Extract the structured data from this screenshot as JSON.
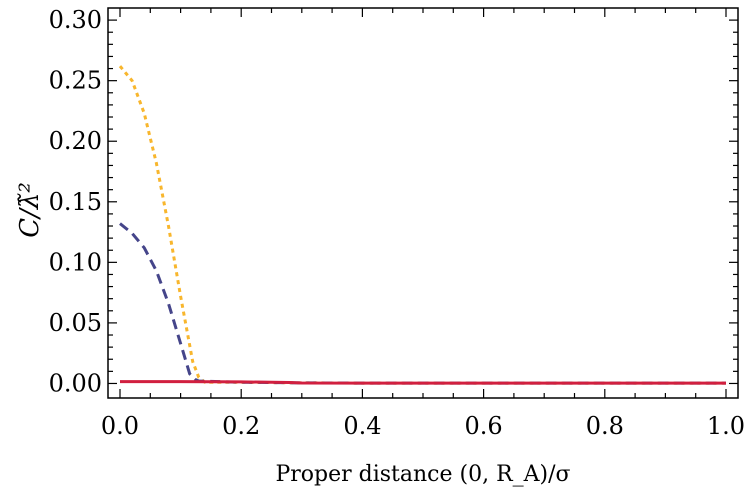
{
  "chart_data": {
    "type": "line",
    "title": "",
    "xlabel": "Proper distance  (0, R_A)/σ",
    "ylabel": "C/λ̃²",
    "xlim": [
      0.0,
      1.0
    ],
    "ylim": [
      -0.012,
      0.31
    ],
    "xticks": [
      0.0,
      0.2,
      0.4,
      0.6,
      0.8,
      1.0
    ],
    "xtick_labels": [
      "0.0",
      "0.2",
      "0.4",
      "0.6",
      "0.8",
      "1.0"
    ],
    "yticks": [
      0.0,
      0.05,
      0.1,
      0.15,
      0.2,
      0.25,
      0.3
    ],
    "ytick_labels": [
      "0.00",
      "0.05",
      "0.10",
      "0.15",
      "0.20",
      "0.25",
      "0.30"
    ],
    "grid": false,
    "series": [
      {
        "color": "#f8b62d",
        "dash": "dotted",
        "x": [
          0.0,
          0.02,
          0.04,
          0.06,
          0.08,
          0.1,
          0.12,
          0.13,
          0.14,
          0.2,
          0.3,
          0.4,
          0.5,
          0.6,
          0.7,
          0.8,
          0.9,
          1.0
        ],
        "y": [
          0.262,
          0.25,
          0.223,
          0.182,
          0.13,
          0.072,
          0.018,
          0.005,
          0.001,
          0.001,
          0.0005,
          0.0003,
          0.0003,
          0.0003,
          0.0003,
          0.0003,
          0.0003,
          0.0003
        ]
      },
      {
        "color": "#45458a",
        "dash": "dashed",
        "x": [
          0.0,
          0.02,
          0.04,
          0.06,
          0.08,
          0.1,
          0.115,
          0.125,
          0.13,
          0.2,
          0.3,
          0.4,
          0.5,
          0.6,
          0.7,
          0.8,
          0.9,
          1.0
        ],
        "y": [
          0.132,
          0.124,
          0.112,
          0.093,
          0.066,
          0.033,
          0.008,
          0.003,
          0.002,
          0.001,
          0.0005,
          0.0003,
          0.0003,
          0.0003,
          0.0003,
          0.0003,
          0.0003,
          0.0003
        ]
      },
      {
        "color": "#d11f3f",
        "dash": "solid",
        "x": [
          0.0,
          0.1,
          0.2,
          0.28,
          0.3,
          0.4,
          0.5,
          0.6,
          0.7,
          0.8,
          0.9,
          1.0
        ],
        "y": [
          0.0015,
          0.0015,
          0.0013,
          0.0008,
          0.0004,
          0.0003,
          0.0003,
          0.0003,
          0.0003,
          0.0003,
          0.0003,
          0.0003
        ]
      }
    ]
  }
}
